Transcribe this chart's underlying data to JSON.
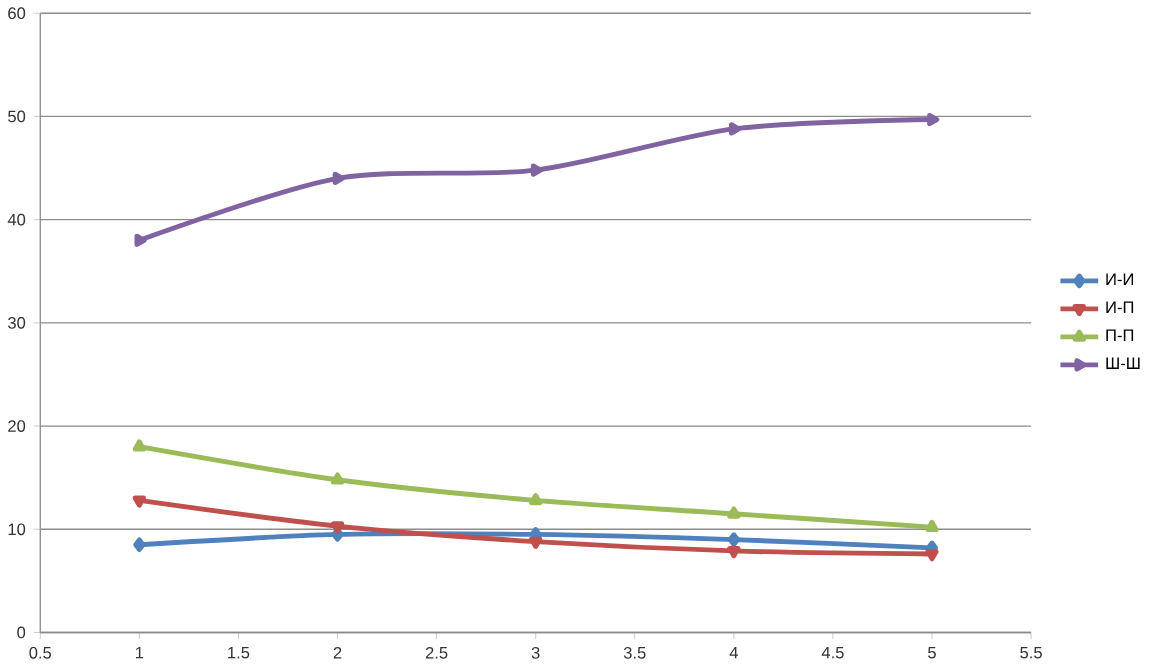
{
  "chart_data": {
    "type": "line",
    "x": [
      1,
      2,
      3,
      4,
      5
    ],
    "xlim": [
      0.5,
      5.5
    ],
    "xticks": [
      0.5,
      1,
      1.5,
      2,
      2.5,
      3,
      3.5,
      4,
      4.5,
      5,
      5.5
    ],
    "ylim": [
      0,
      60
    ],
    "yticks": [
      0,
      10,
      20,
      30,
      40,
      50,
      60
    ],
    "grid": "y",
    "legend": "right",
    "line_style": "solid",
    "series": [
      {
        "name": "И-И",
        "color": "#4f81bd",
        "marker": "diamond",
        "values": [
          8.5,
          9.5,
          9.5,
          9.0,
          8.2
        ]
      },
      {
        "name": "И-П",
        "color": "#c0504d",
        "marker": "triangle down",
        "values": [
          12.8,
          10.3,
          8.8,
          7.9,
          7.6
        ]
      },
      {
        "name": "П-П",
        "color": "#9bbb59",
        "marker": "triangle",
        "values": [
          18,
          14.8,
          12.8,
          11.5,
          10.2
        ]
      },
      {
        "name": "Ш-Ш",
        "color": "#8064a2",
        "marker": "triangle right",
        "values": [
          38,
          44,
          44.8,
          48.8,
          49.7
        ]
      }
    ]
  }
}
